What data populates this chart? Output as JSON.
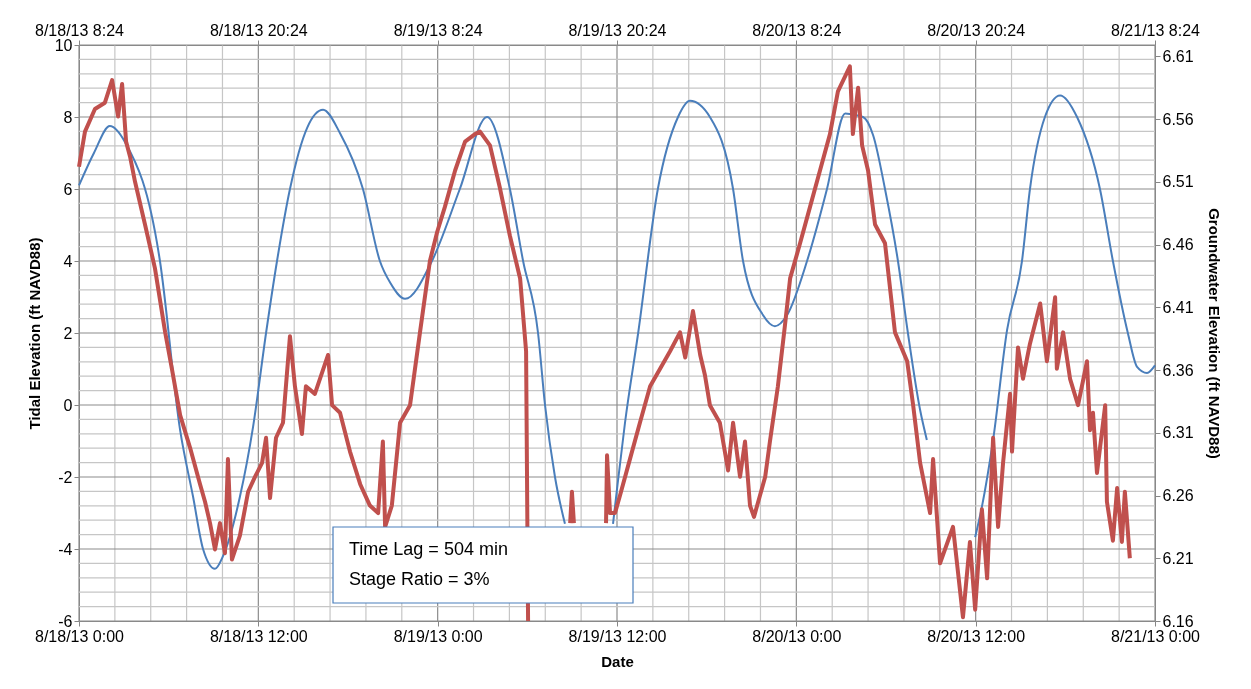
{
  "chart_data": {
    "type": "line",
    "xlabel": "Date",
    "ylabel": "Tidal Elevation (ft NAVD88)",
    "y2label": "Groundwater Elevation (ft NAVD88)",
    "annotations": [
      "Time Lag = 504 min",
      "Stage Ratio = 3%"
    ],
    "grid": true,
    "xlim": [
      "--08-18T00:00",
      "--08-21T00:00"
    ],
    "xticks": [
      {
        "value": "--08-18T00:00",
        "label": "8/18/13 0:00"
      },
      {
        "value": "--08-18T02:24",
        "label": null
      },
      {
        "value": "--08-18T04:48",
        "label": null
      },
      {
        "value": "--08-18T07:12",
        "label": null
      },
      {
        "value": "--08-18T09:36",
        "label": null
      },
      {
        "value": "--08-18T12:00",
        "label": "8/18/13 12:00"
      },
      {
        "value": "--08-18T14:24",
        "label": null
      },
      {
        "value": "--08-18T16:48",
        "label": null
      },
      {
        "value": "--08-18T19:12",
        "label": null
      },
      {
        "value": "--08-18T21:36",
        "label": null
      },
      {
        "value": "--08-19T00:00",
        "label": "8/19/13 0:00"
      },
      {
        "value": "--08-19T02:24",
        "label": null
      },
      {
        "value": "--08-19T04:48",
        "label": null
      },
      {
        "value": "--08-19T07:12",
        "label": null
      },
      {
        "value": "--08-19T09:36",
        "label": null
      },
      {
        "value": "--08-19T12:00",
        "label": "8/19/13 12:00"
      },
      {
        "value": "--08-19T14:24",
        "label": null
      },
      {
        "value": "--08-19T16:48",
        "label": null
      },
      {
        "value": "--08-19T19:12",
        "label": null
      },
      {
        "value": "--08-19T21:36",
        "label": null
      },
      {
        "value": "--08-20T00:00",
        "label": "8/20/13 0:00"
      },
      {
        "value": "--08-20T02:24",
        "label": null
      },
      {
        "value": "--08-20T04:48",
        "label": null
      },
      {
        "value": "--08-20T07:12",
        "label": null
      },
      {
        "value": "--08-20T09:36",
        "label": null
      },
      {
        "value": "--08-20T12:00",
        "label": "8/20/13 12:00"
      },
      {
        "value": "--08-20T14:24",
        "label": null
      },
      {
        "value": "--08-20T16:48",
        "label": null
      },
      {
        "value": "--08-20T19:12",
        "label": null
      },
      {
        "value": "--08-20T21:36",
        "label": null
      },
      {
        "value": "--08-21T00:00",
        "label": "8/21/13 0:00"
      }
    ],
    "x2lim": [
      "--08-18T08:24",
      "--08-21T08:24"
    ],
    "x2ticks": [
      {
        "value": "--08-18T08:24",
        "label": "8/18/13 8:24"
      },
      {
        "value": "--08-18T20:24",
        "label": "8/18/13 20:24"
      },
      {
        "value": "--08-19T08:24",
        "label": "8/19/13 8:24"
      },
      {
        "value": "--08-19T20:24",
        "label": "8/19/13 20:24"
      },
      {
        "value": "--08-20T08:24",
        "label": "8/20/13 8:24"
      },
      {
        "value": "--08-20T20:24",
        "label": "8/20/13 20:24"
      },
      {
        "value": "--08-21T08:24",
        "label": "8/21/13 8:24"
      }
    ],
    "ylim": [
      -6,
      10
    ],
    "yticks": [
      -6,
      {
        "value": -5.6,
        "label": null
      },
      {
        "value": -5.2,
        "label": null
      },
      {
        "value": -4.8,
        "label": null
      },
      {
        "value": -4.4,
        "label": null
      },
      -4,
      {
        "value": -3.6,
        "label": null
      },
      {
        "value": -3.2,
        "label": null
      },
      {
        "value": -2.8,
        "label": null
      },
      {
        "value": -2.4,
        "label": null
      },
      -2,
      {
        "value": -1.6,
        "label": null
      },
      {
        "value": -1.2,
        "label": null
      },
      {
        "value": -0.8,
        "label": null
      },
      {
        "value": -0.4,
        "label": null
      },
      0,
      {
        "value": 0.4,
        "label": null
      },
      {
        "value": 0.8,
        "label": null
      },
      {
        "value": 1.2,
        "label": null
      },
      {
        "value": 1.6,
        "label": null
      },
      2,
      {
        "value": 2.4,
        "label": null
      },
      {
        "value": 2.8,
        "label": null
      },
      {
        "value": 3.2,
        "label": null
      },
      {
        "value": 3.6,
        "label": null
      },
      4,
      {
        "value": 4.4,
        "label": null
      },
      {
        "value": 4.8,
        "label": null
      },
      {
        "value": 5.2,
        "label": null
      },
      {
        "value": 5.6,
        "label": null
      },
      6,
      {
        "value": 6.4,
        "label": null
      },
      {
        "value": 6.8,
        "label": null
      },
      {
        "value": 7.2,
        "label": null
      },
      {
        "value": 7.6,
        "label": null
      },
      8,
      {
        "value": 8.4,
        "label": null
      },
      {
        "value": 8.8,
        "label": null
      },
      {
        "value": 9.2,
        "label": null
      },
      {
        "value": 9.6,
        "label": null
      },
      10
    ],
    "y2lim": [
      6.16,
      6.619
    ],
    "y2ticks": [
      6.16,
      6.21,
      6.26,
      6.31,
      6.36,
      6.41,
      6.46,
      6.51,
      6.56,
      6.61
    ],
    "series": [
      {
        "color": "#4a7ebb",
        "x": [
          "--08-18T00:00",
          "--08-18T01:00",
          "--08-18T02:04",
          "--08-18T03:05",
          "--08-18T05:25",
          "--08-18T06:46",
          "--08-18T07:38",
          "--08-18T08:18",
          "--08-18T09:06",
          "--08-18T09:38",
          "--08-18T10:46",
          "--08-18T11:39",
          "--08-18T12:31",
          "--08-18T13:15",
          "--08-18T14:07",
          "--08-18T15:16",
          "--08-18T16:20",
          "--08-18T17:28",
          "--08-18T19:00",
          "--08-18T20:08",
          "--08-18T20:49",
          "--08-18T21:49",
          "--08-18T23:37",
          "--08-19T01:29",
          "--08-19T03:18",
          "--08-19T04:50",
          "--08-19T05:43",
          "--08-19T06:43",
          "--08-19T07:11",
          "--08-19T07:51",
          "--08-19T08:31",
          "--08-19T10:11",
          "--08-19T11:44",
          "--08-19T11:59",
          "--08-19T12:32",
          "--08-19T13:25",
          "--08-19T14:44",
          "--08-19T16:05",
          "--08-19T16:53",
          "--08-19T18:13",
          "--08-19T19:46",
          "--08-19T20:26",
          "--08-19T21:46",
          "--08-19T22:34",
          "--08-19T23:23",
          "--08-20T00:43",
          "--08-20T02:03",
          "--08-20T03:16",
          "--08-20T04:28",
          "--08-20T05:08",
          "--08-20T05:56",
          "--08-20T06:48",
          "--08-20T07:28",
          "--08-20T08:17",
          "--08-20T08:44",
          "--08-20T10:17",
          "--08-20T11:58",
          "--08-20T12:25",
          "--08-20T13:10",
          "--08-20T14:06",
          "--08-20T15:06",
          "--08-20T15:38",
          "--08-20T16:38",
          "--08-20T17:39",
          "--08-20T18:47",
          "--08-20T20:19",
          "--08-20T21:11",
          "--08-20T22:11",
          "--08-20T22:48",
          "--08-20T23:28",
          "--08-21T00:00"
        ],
        "values": [
          6.1,
          7.0,
          7.75,
          7.3,
          4.0,
          -0.7,
          -2.55,
          -4.0,
          -4.55,
          -4.2,
          -2.55,
          -0.6,
          2.0,
          4.0,
          6.0,
          7.7,
          8.2,
          7.55,
          6.0,
          4.0,
          3.4,
          2.95,
          4.0,
          6.0,
          8.0,
          6.0,
          4.0,
          2.0,
          0.0,
          -2.0,
          -3.3,
          null,
          -3.3,
          -2.4,
          -0.5,
          2.0,
          6.0,
          8.0,
          8.45,
          8.0,
          6.0,
          4.0,
          2.5,
          2.19,
          2.5,
          4.0,
          6.0,
          8.1,
          8.0,
          7.5,
          6.0,
          4.0,
          2.0,
          -0.14,
          -0.97,
          null,
          -3.67,
          -2.83,
          -0.97,
          2.08,
          4.0,
          6.0,
          8.0,
          8.6,
          8.0,
          6.0,
          4.0,
          2.0,
          1.06,
          0.89,
          1.1
        ]
      },
      {
        "color": "#c0504d",
        "axis": "y2",
        "x": [
          "--08-18T00:00",
          "--08-18T00:24",
          "--08-18T01:04",
          "--08-18T01:44",
          "--08-18T02:13",
          "--08-18T02:37",
          "--08-18T02:53",
          "--08-18T03:09",
          "--08-18T03:25",
          "--08-18T03:45",
          "--08-18T04:25",
          "--08-18T05:05",
          "--08-18T05:46",
          "--08-18T06:13",
          "--08-18T06:46",
          "--08-18T07:26",
          "--08-18T08:06",
          "--08-18T08:26",
          "--08-18T08:46",
          "--08-18T09:06",
          "--08-18T09:26",
          "--08-18T09:46",
          "--08-18T09:58",
          "--08-18T10:14",
          "--08-18T10:46",
          "--08-18T11:19",
          "--08-18T11:47",
          "--08-18T12:15",
          "--08-18T12:31",
          "--08-18T12:47",
          "--08-18T13:11",
          "--08-18T13:39",
          "--08-18T14:07",
          "--08-18T14:27",
          "--08-18T14:55",
          "--08-18T15:11",
          "--08-18T15:47",
          "--08-18T16:40",
          "--08-18T16:56",
          "--08-18T17:28",
          "--08-18T18:08",
          "--08-18T18:49",
          "--08-18T19:28",
          "--08-18T20:01",
          "--08-18T20:20",
          "--08-18T20:29",
          "--08-18T20:56",
          "--08-18T21:29",
          "--08-18T22:09",
          "--08-18T22:49",
          "--08-18T23:29",
          "--08-18T23:58",
          "--08-19T00:29",
          "--08-19T01:10",
          "--08-19T01:50",
          "--08-19T02:30",
          "--08-19T02:50",
          "--08-19T03:30",
          "--08-19T04:10",
          "--08-19T04:50",
          "--08-19T05:31",
          "--08-19T05:55",
          "--08-19T06:03",
          "--08-19T06:11",
          "--08-19T08:52",
          "--08-19T08:59",
          "--08-19T09:07",
          "--08-19T09:12",
          "--08-19T11:16",
          "--08-19T11:20",
          "--08-19T11:32",
          "--08-19T11:52",
          "--08-19T12:12",
          "--08-19T12:52",
          "--08-19T13:32",
          "--08-19T14:13",
          "--08-19T14:53",
          "--08-19T15:33",
          "--08-19T16:13",
          "--08-19T16:34",
          "--08-19T17:05",
          "--08-19T17:34",
          "--08-19T17:53",
          "--08-19T18:13",
          "--08-19T18:53",
          "--08-19T19:26",
          "--08-19T19:46",
          "--08-19T20:14",
          "--08-19T20:34",
          "--08-19T20:54",
          "--08-19T21:10",
          "--08-19T21:34",
          "--08-19T21:55",
          "--08-19T22:14",
          "--08-19T22:46",
          "--08-19T23:14",
          "--08-19T23:35",
          "--08-20T00:15",
          "--08-20T00:55",
          "--08-20T01:35",
          "--08-20T02:15",
          "--08-20T02:47",
          "--08-20T03:35",
          "--08-20T03:47",
          "--08-20T04:08",
          "--08-20T04:24",
          "--08-20T04:48",
          "--08-20T05:16",
          "--08-20T05:56",
          "--08-20T06:36",
          "--08-20T07:25",
          "--08-20T07:49",
          "--08-20T08:17",
          "--08-20T08:57",
          "--08-20T09:09",
          "--08-20T09:37",
          "--08-20T10:29",
          "--08-20T11:09",
          "--08-20T11:37",
          "--08-20T11:58",
          "--08-20T12:25",
          "--08-20T12:46",
          "--08-20T13:10",
          "--08-20T13:30",
          "--08-20T13:50",
          "--08-20T14:18",
          "--08-20T14:26",
          "--08-20T14:50",
          "--08-20T15:10",
          "--08-20T15:38",
          "--08-20T16:19",
          "--08-20T16:46",
          "--08-20T17:19",
          "--08-20T17:26",
          "--08-20T17:51",
          "--08-20T18:19",
          "--08-20T18:51",
          "--08-20T19:27",
          "--08-20T19:39",
          "--08-20T19:51",
          "--08-20T20:07",
          "--08-20T20:40",
          "--08-20T20:47",
          "--08-20T21:11",
          "--08-20T21:28",
          "--08-20T21:47",
          "--08-20T21:59",
          "--08-20T22:19"
        ],
        "values": [
          6.522,
          6.55,
          6.568,
          6.573,
          6.591,
          6.562,
          6.588,
          6.542,
          6.53,
          6.51,
          6.476,
          6.441,
          6.39,
          6.361,
          6.324,
          6.298,
          6.269,
          6.255,
          6.238,
          6.217,
          6.238,
          6.214,
          6.289,
          6.209,
          6.228,
          6.263,
          6.275,
          6.286,
          6.306,
          6.258,
          6.306,
          6.318,
          6.387,
          6.347,
          6.309,
          6.347,
          6.341,
          6.372,
          6.332,
          6.326,
          6.295,
          6.269,
          6.252,
          6.246,
          6.303,
          6.235,
          6.252,
          6.318,
          6.332,
          6.39,
          6.447,
          6.47,
          6.49,
          6.519,
          6.542,
          6.548,
          6.55,
          6.539,
          6.505,
          6.467,
          6.433,
          6.375,
          6.16,
          null,
          6.238,
          6.263,
          6.238,
          null,
          6.238,
          6.292,
          6.246,
          6.246,
          6.26,
          6.289,
          6.318,
          6.347,
          6.361,
          6.375,
          6.39,
          6.37,
          6.407,
          6.372,
          6.356,
          6.332,
          6.318,
          6.28,
          6.318,
          6.275,
          6.303,
          6.252,
          6.243,
          6.26,
          6.275,
          6.303,
          6.347,
          6.395,
          6.433,
          6.461,
          6.49,
          6.519,
          6.548,
          6.582,
          6.602,
          6.548,
          6.585,
          6.539,
          6.519,
          6.476,
          6.461,
          6.39,
          6.367,
          6.332,
          6.286,
          6.246,
          6.289,
          6.206,
          6.235,
          6.163,
          6.223,
          6.169,
          6.249,
          6.194,
          6.306,
          6.235,
          6.286,
          6.341,
          6.295,
          6.378,
          6.353,
          6.381,
          6.413,
          6.367,
          6.418,
          6.361,
          6.39,
          6.353,
          6.332,
          6.367,
          6.312,
          6.326,
          6.278,
          6.332,
          6.255,
          6.224,
          6.266,
          6.223,
          6.263,
          6.21
        ]
      }
    ]
  }
}
